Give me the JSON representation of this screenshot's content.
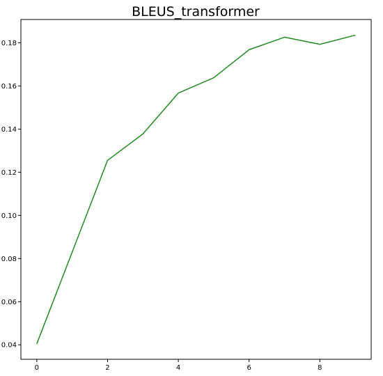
{
  "chart_data": {
    "type": "line",
    "title": "BLEUS_transformer",
    "xlabel": "",
    "ylabel": "",
    "x": [
      0,
      1,
      2,
      3,
      4,
      5,
      6,
      7,
      8,
      9
    ],
    "series": [
      {
        "values": [
          0.0405,
          0.083,
          0.1255,
          0.1378,
          0.1567,
          0.1638,
          0.1768,
          0.1826,
          0.1793,
          0.1835
        ],
        "color": "#228b22"
      }
    ],
    "xlim": [
      -0.45,
      9.45
    ],
    "ylim": [
      0.0333,
      0.1908
    ],
    "xticks": [
      0,
      2,
      4,
      6,
      8
    ],
    "yticks": [
      0.04,
      0.06,
      0.08,
      0.1,
      0.12,
      0.14,
      0.16,
      0.18
    ],
    "xtick_labels": [
      "0",
      "2",
      "4",
      "6",
      "8"
    ],
    "ytick_labels": [
      "0.04",
      "0.06",
      "0.08",
      "0.10",
      "0.12",
      "0.14",
      "0.16",
      "0.18"
    ],
    "grid": false,
    "legend": false
  }
}
